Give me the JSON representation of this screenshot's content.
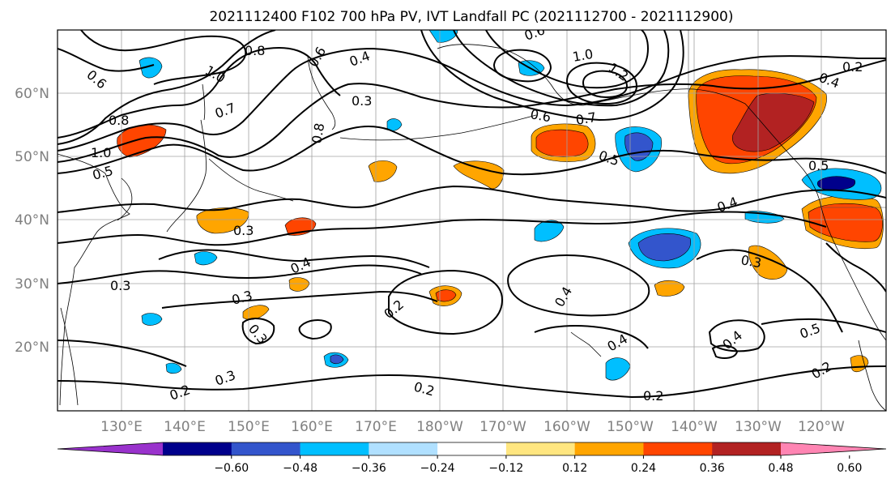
{
  "title": "2021112400 F102 700 hPa PV, IVT Landfall PC (2021112700 - 2021112900)",
  "lat_labels": [
    "60°N",
    "50°N",
    "40°N",
    "30°N",
    "20°N"
  ],
  "lon_labels": [
    "130°E",
    "140°E",
    "150°E",
    "160°E",
    "170°E",
    "180°W",
    "170°W",
    "160°W",
    "150°W",
    "140°W",
    "130°W",
    "120°W"
  ],
  "colorbar": {
    "colors": [
      "#9932cc",
      "#00008b",
      "#3355cc",
      "#00bfff",
      "#b0e0ff",
      "#ffffff",
      "#ffe680",
      "#ffa500",
      "#ff4500",
      "#b22222",
      "#ff85b3"
    ],
    "tick_labels": [
      "−0.60",
      "−0.48",
      "−0.36",
      "−0.24",
      "−0.12",
      "0.12",
      "0.24",
      "0.36",
      "0.48",
      "0.60"
    ]
  },
  "contour_labels": [
    "0.6",
    "1.0",
    "0.8",
    "0.7",
    "0.8",
    "1.0",
    "0.5",
    "0.6",
    "0.4",
    "0.3",
    "0.8",
    "0.6",
    "1.0",
    "1.2",
    "0.6",
    "0.7",
    "0.5",
    "0.5",
    "0.3",
    "0.4",
    "0.3",
    "0.3",
    "0.2",
    "0.4",
    "0.4",
    "0.3",
    "0.2",
    "0.2",
    "0.3",
    "0.2",
    "0.4",
    "0.4",
    "0.5",
    "0.2",
    "0.4",
    "0.2",
    "0.3"
  ],
  "fill_colors": {
    "orange_light": "#ffa500",
    "orange_red": "#ff4500",
    "dark_red": "#b22222",
    "sky_blue": "#00bfff",
    "royal_blue": "#3355cc",
    "navy": "#00008b"
  }
}
